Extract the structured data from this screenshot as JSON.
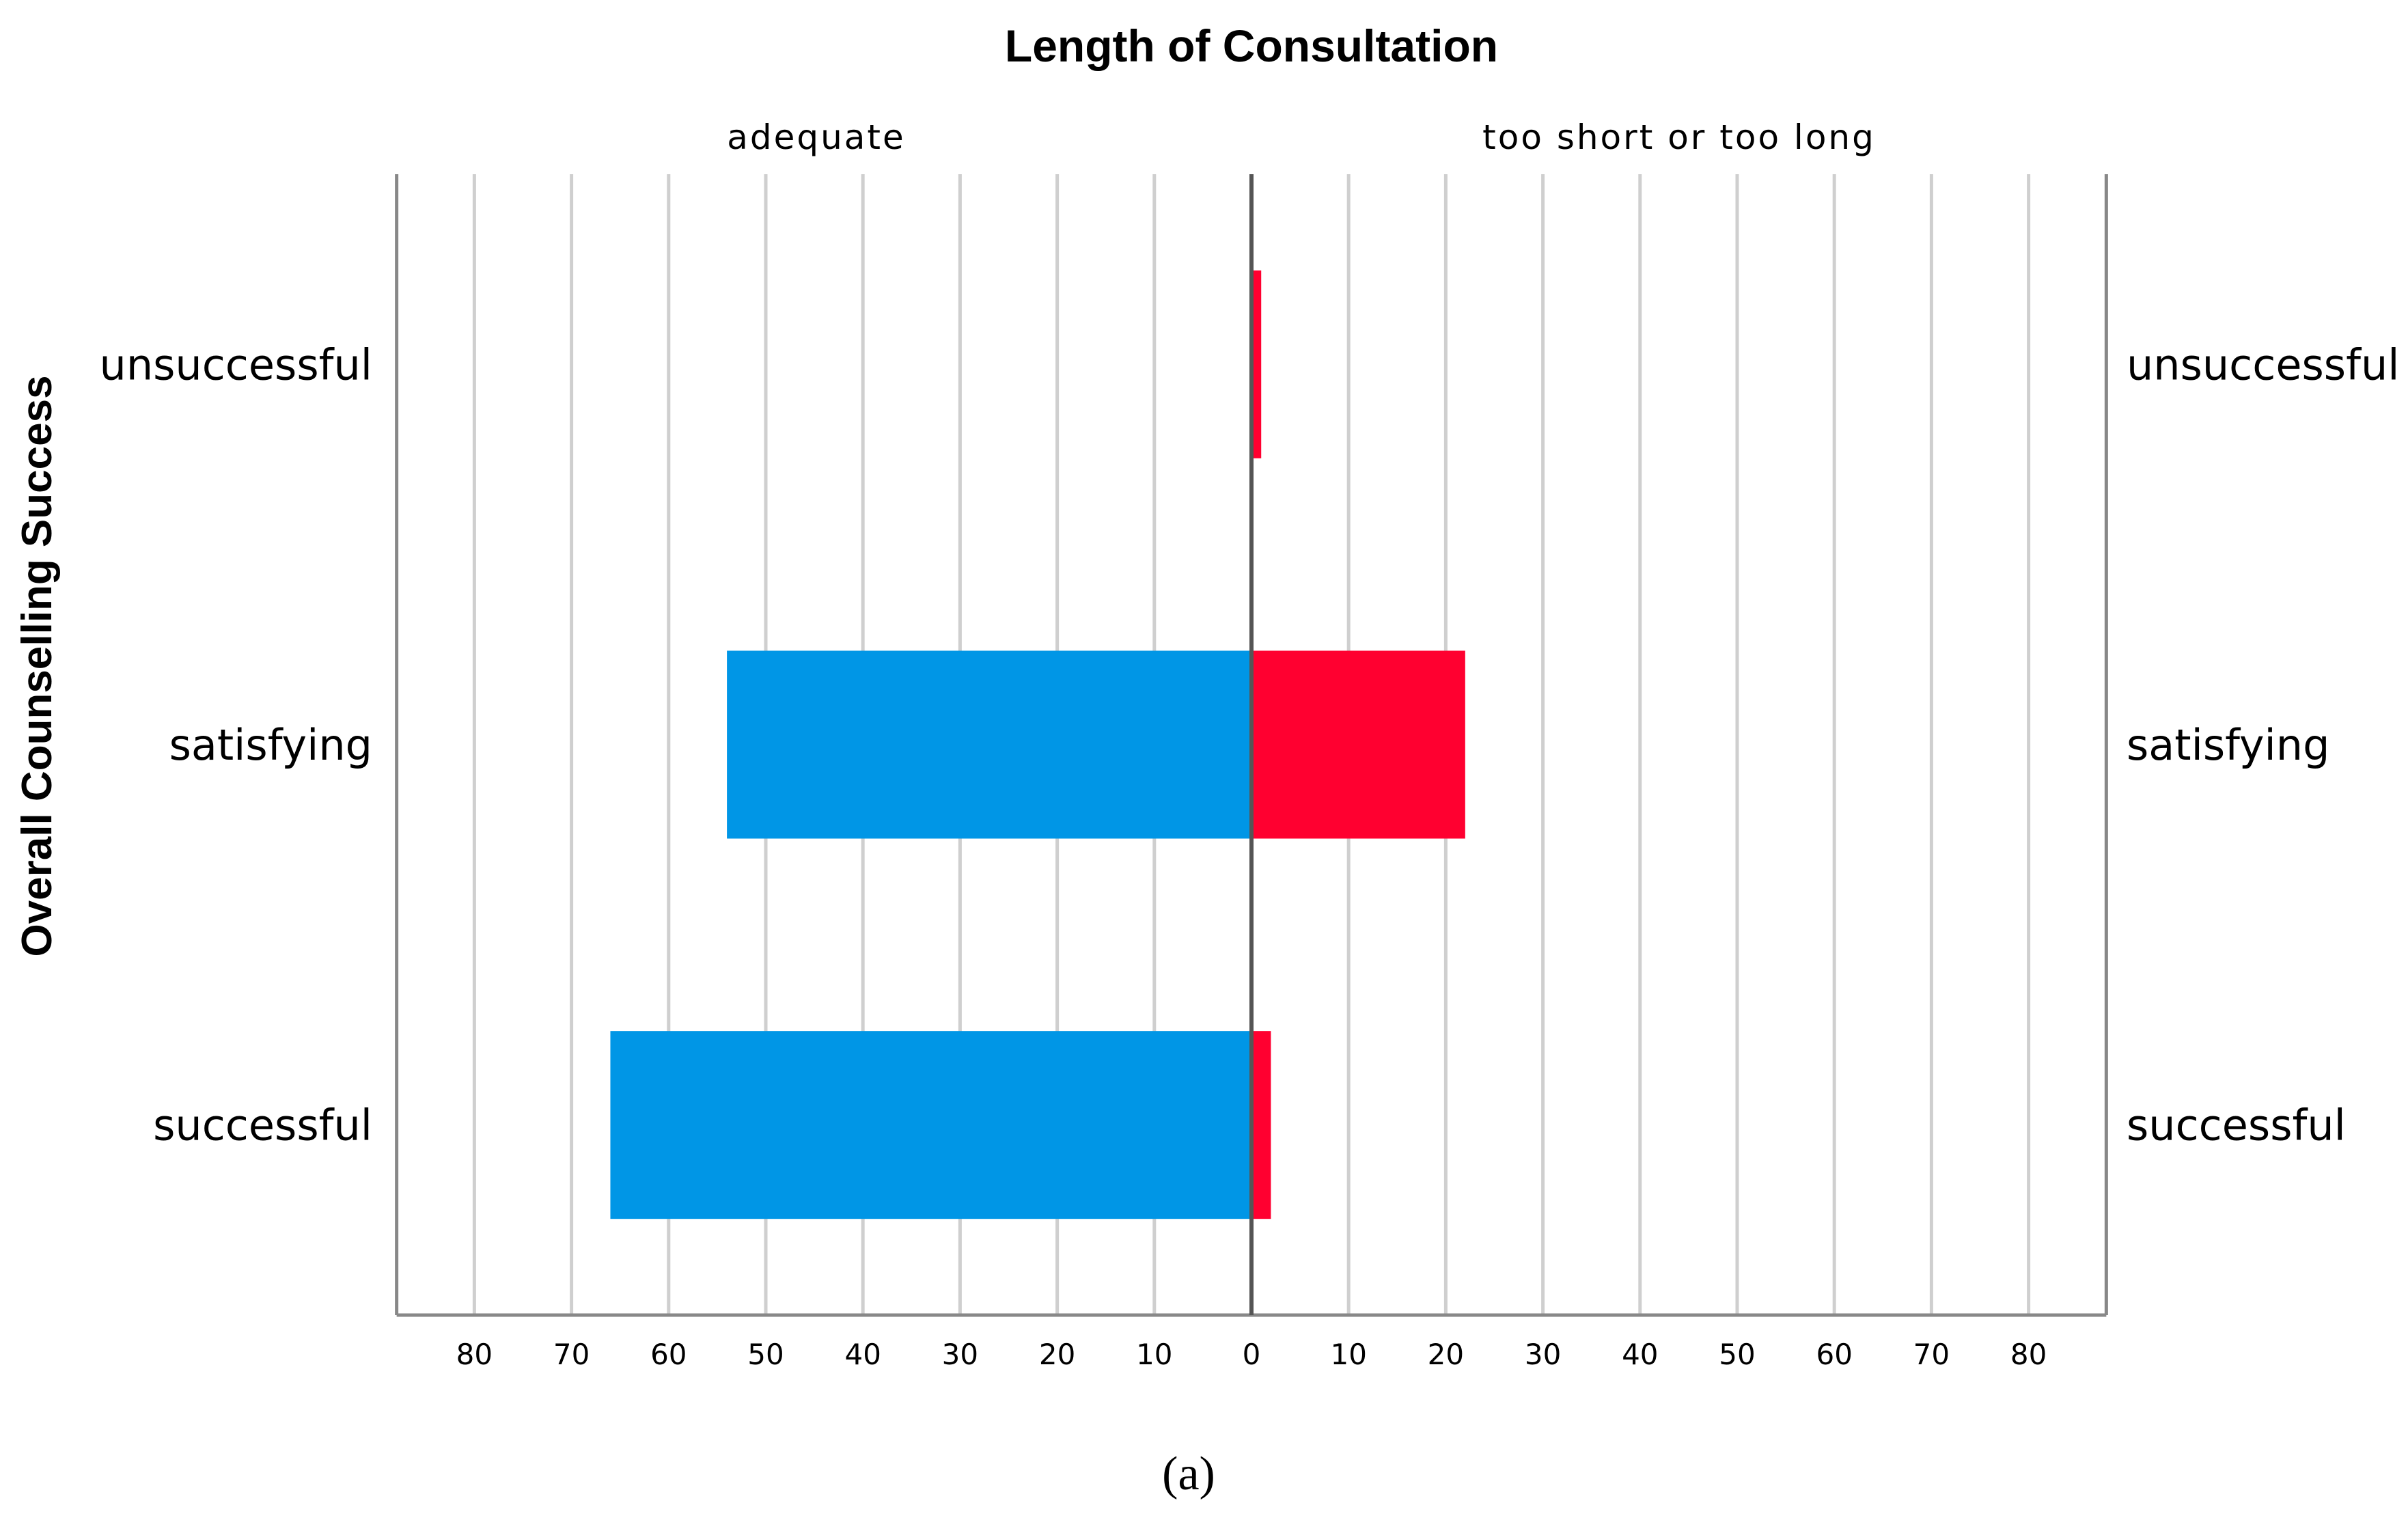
{
  "caption": "(a)",
  "colors": {
    "left": "#0096e6",
    "right": "#ff0030",
    "grid": "#cfcfcf",
    "axis": "#888888",
    "center": "#555555"
  },
  "chart_data": {
    "type": "bar",
    "orientation": "horizontal",
    "layout": "population-pyramid",
    "title": "Length of Consultation",
    "ylabel": "Overall Counselling Success",
    "xlim": [
      -88,
      88
    ],
    "xticks": [
      80,
      70,
      60,
      50,
      40,
      30,
      20,
      10,
      0,
      10,
      20,
      30,
      40,
      50,
      60,
      70,
      80
    ],
    "grid": true,
    "categories": [
      "unsuccessful",
      "satisfying",
      "successful"
    ],
    "series": [
      {
        "name": "adequate",
        "side": "left",
        "values": [
          0,
          54,
          66
        ]
      },
      {
        "name": "too short or too long",
        "side": "right",
        "values": [
          1,
          22,
          2
        ]
      }
    ]
  }
}
